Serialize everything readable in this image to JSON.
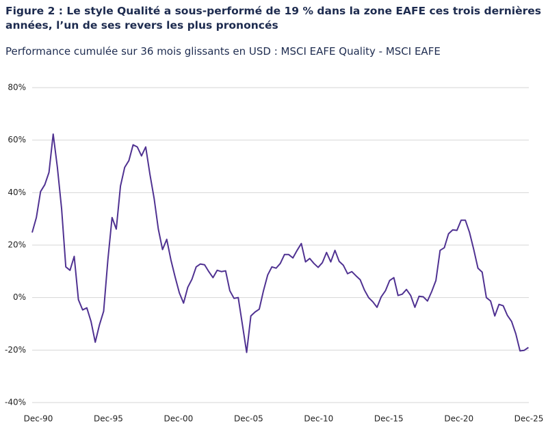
{
  "chart_data": {
    "type": "line",
    "title": "Figure 2 : Le style Qualité a sous-performé de 19 % dans la zone EAFE ces trois dernières années, l’un de ses revers les plus prononcés",
    "subtitle": "Performance cumulée sur 36 mois glissants en USD : MSCI EAFE Quality - MSCI EAFE",
    "x": [
      1990.5,
      1990.8,
      1991.1,
      1991.4,
      1991.7,
      1992.0,
      1992.3,
      1992.6,
      1992.9,
      1993.2,
      1993.5,
      1993.8,
      1994.1,
      1994.4,
      1994.7,
      1995.0,
      1995.3,
      1995.6,
      1995.9,
      1996.2,
      1996.5,
      1996.8,
      1997.1,
      1997.4,
      1997.7,
      1998.0,
      1998.3,
      1998.6,
      1998.9,
      1999.2,
      1999.5,
      1999.8,
      2000.1,
      2000.4,
      2000.7,
      2001.0,
      2001.3,
      2001.6,
      2001.9,
      2002.2,
      2002.5,
      2002.8,
      2003.1,
      2003.4,
      2003.7,
      2004.0,
      2004.3,
      2004.6,
      2004.9,
      2005.2,
      2005.5,
      2005.8,
      2006.1,
      2006.4,
      2006.7,
      2007.0,
      2007.3,
      2007.6,
      2007.9,
      2008.2,
      2008.5,
      2008.8,
      2009.1,
      2009.4,
      2009.7,
      2010.0,
      2010.3,
      2010.6,
      2010.9,
      2011.2,
      2011.5,
      2011.8,
      2012.1,
      2012.4,
      2012.7,
      2013.0,
      2013.3,
      2013.6,
      2013.9,
      2014.2,
      2014.5,
      2014.8,
      2015.1,
      2015.4,
      2015.7,
      2016.0,
      2016.3,
      2016.6,
      2016.9,
      2017.2,
      2017.5,
      2017.8,
      2018.1,
      2018.4,
      2018.7,
      2019.0,
      2019.3,
      2019.6,
      2019.9,
      2020.2,
      2020.5,
      2020.8,
      2021.1,
      2021.4,
      2021.7,
      2022.0,
      2022.3,
      2022.6,
      2022.9,
      2023.2,
      2023.5,
      2023.8,
      2024.1,
      2024.4,
      2024.7,
      2025.0,
      2025.3,
      2025.6,
      2025.9
    ],
    "series": [
      {
        "color": "#4f3191",
        "values": [
          24.8,
          30.5,
          40.4,
          43.0,
          47.7,
          62.3,
          49.6,
          33.9,
          11.7,
          10.4,
          15.7,
          -0.8,
          -4.7,
          -3.9,
          -9.1,
          -17.0,
          -10.4,
          -5.2,
          14.3,
          30.5,
          26.1,
          42.5,
          49.6,
          52.2,
          58.2,
          57.4,
          54.0,
          57.4,
          47.0,
          37.8,
          26.1,
          18.3,
          22.2,
          14.3,
          7.8,
          1.8,
          -2.1,
          3.9,
          7.0,
          11.7,
          12.8,
          12.5,
          9.9,
          7.6,
          10.4,
          9.9,
          10.2,
          2.6,
          -0.3,
          0,
          -10.4,
          -20.9,
          -7.0,
          -5.5,
          -4.4,
          2.6,
          8.6,
          11.7,
          11.2,
          13.0,
          16.4,
          16.4,
          15.1,
          18.0,
          20.6,
          13.6,
          14.9,
          13.0,
          11.5,
          13.3,
          17.2,
          13.6,
          18.0,
          13.8,
          12.3,
          9.1,
          9.9,
          8.3,
          6.8,
          2.9,
          0,
          -1.6,
          -3.7,
          0.3,
          2.6,
          6.5,
          7.6,
          0.8,
          1.3,
          3.1,
          0.8,
          -3.7,
          0.5,
          0.3,
          -1.3,
          2.3,
          6.5,
          18.0,
          19.0,
          24.3,
          25.8,
          25.6,
          29.5,
          29.5,
          24.8,
          18.3,
          11.2,
          9.7,
          0,
          -1.3,
          -7.0,
          -2.6,
          -3.1,
          -6.8,
          -9.1,
          -13.8,
          -20.3,
          -20.1,
          -19.0
        ]
      }
    ],
    "xlim": [
      1990.5,
      2025.93
    ],
    "xticks": [
      {
        "value": 1990.94,
        "label": "Dec-90"
      },
      {
        "value": 1995.94,
        "label": "Dec-95"
      },
      {
        "value": 2000.94,
        "label": "Dec-00"
      },
      {
        "value": 2005.94,
        "label": "Dec-05"
      },
      {
        "value": 2010.94,
        "label": "Dec-10"
      },
      {
        "value": 2015.94,
        "label": "Dec-15"
      },
      {
        "value": 2020.94,
        "label": "Dec-20"
      },
      {
        "value": 2025.93,
        "label": "Dec-25"
      }
    ],
    "ylim": [
      -40,
      80
    ],
    "yticks": [
      {
        "value": -40,
        "label": "-40%"
      },
      {
        "value": -20,
        "label": "-20%"
      },
      {
        "value": 0,
        "label": "0%"
      },
      {
        "value": 20,
        "label": "20%"
      },
      {
        "value": 40,
        "label": "40%"
      },
      {
        "value": 60,
        "label": "60%"
      },
      {
        "value": 80,
        "label": "80%"
      }
    ],
    "grid": true
  }
}
